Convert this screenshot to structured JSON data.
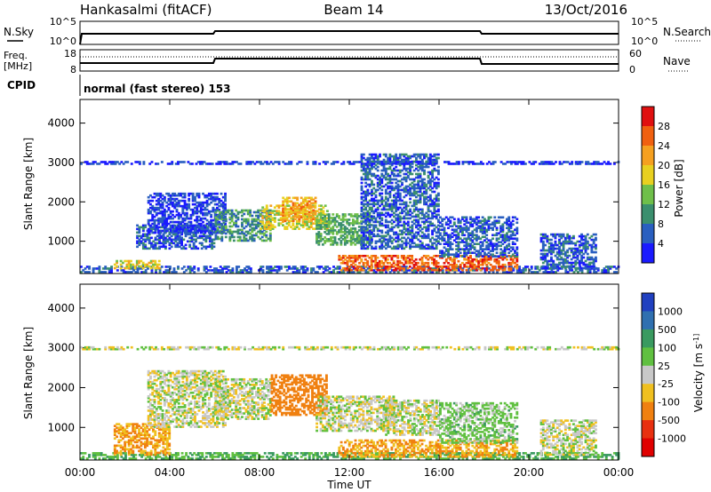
{
  "header": {
    "station": "Hankasalmi (fitACF)",
    "beam": "Beam 14",
    "date": "13/Oct/2016"
  },
  "noise_panel": {
    "left_label": "N.Sky",
    "right_label": "N.Search",
    "left_ticks": [
      "10^5",
      "10^0"
    ],
    "right_ticks": [
      "10^5",
      "10^0"
    ]
  },
  "freq_panel": {
    "left_label_1": "Freq.",
    "left_label_2": "[MHz]",
    "right_label": "Nave",
    "left_ticks": [
      "18",
      "8"
    ],
    "right_ticks": [
      "60",
      "0"
    ]
  },
  "cpid": {
    "label": "CPID",
    "text": "normal (fast stereo) 153"
  },
  "chart_data": [
    {
      "type": "heatmap",
      "title": "Power",
      "ylabel": "Slant Range [km]",
      "xlabel": "Time UT",
      "ylim": [
        180,
        4600
      ],
      "yticks": [
        "1000",
        "2000",
        "3000",
        "4000"
      ],
      "xticks": [
        "00:00",
        "04:00",
        "08:00",
        "12:00",
        "16:00",
        "20:00",
        "00:00"
      ],
      "colorbar": {
        "label": "Power [dB]",
        "ticks": [
          "4",
          "8",
          "12",
          "16",
          "20",
          "24",
          "28"
        ],
        "colors": [
          "#1a1aff",
          "#2a5fc0",
          "#3b8f6e",
          "#6fbf4a",
          "#e8d020",
          "#f5a020",
          "#f06010",
          "#e01010"
        ]
      },
      "echo_regions": [
        {
          "t_start": 0.0,
          "t_end": 24.0,
          "range_min": 200,
          "range_max": 350,
          "power": 8
        },
        {
          "t_start": 1.5,
          "t_end": 3.5,
          "range_min": 300,
          "range_max": 500,
          "power": 20
        },
        {
          "t_start": 2.5,
          "t_end": 6.0,
          "range_min": 800,
          "range_max": 1400,
          "power": 8
        },
        {
          "t_start": 3.0,
          "t_end": 6.5,
          "range_min": 1200,
          "range_max": 2200,
          "power": 6
        },
        {
          "t_start": 6.0,
          "t_end": 8.5,
          "range_min": 1000,
          "range_max": 1800,
          "power": 12
        },
        {
          "t_start": 8.0,
          "t_end": 11.0,
          "range_min": 1300,
          "range_max": 1900,
          "power": 20
        },
        {
          "t_start": 9.0,
          "t_end": 10.5,
          "range_min": 1500,
          "range_max": 2100,
          "power": 24
        },
        {
          "t_start": 10.5,
          "t_end": 13.0,
          "range_min": 900,
          "range_max": 1700,
          "power": 14
        },
        {
          "t_start": 11.5,
          "t_end": 19.5,
          "range_min": 250,
          "range_max": 650,
          "power": 28
        },
        {
          "t_start": 12.5,
          "t_end": 16.0,
          "range_min": 800,
          "range_max": 3200,
          "power": 8
        },
        {
          "t_start": 16.0,
          "t_end": 19.5,
          "range_min": 600,
          "range_max": 1600,
          "power": 8
        },
        {
          "t_start": 20.5,
          "t_end": 23.0,
          "range_min": 300,
          "range_max": 1200,
          "power": 8
        },
        {
          "t_start": 0.0,
          "t_end": 24.0,
          "range_min": 2950,
          "range_max": 3000,
          "power": 6
        }
      ]
    },
    {
      "type": "heatmap",
      "title": "Velocity",
      "ylabel": "Slant Range [km]",
      "xlabel": "Time UT",
      "ylim": [
        180,
        4600
      ],
      "yticks": [
        "1000",
        "2000",
        "3000",
        "4000"
      ],
      "xticks": [
        "00:00",
        "04:00",
        "08:00",
        "12:00",
        "16:00",
        "20:00",
        "00:00"
      ],
      "colorbar": {
        "label": "Velocity [m s^-1]",
        "ticks": [
          "1000",
          "500",
          "100",
          "25",
          "-25",
          "-100",
          "-500",
          "-1000"
        ],
        "colors": [
          "#2040c0",
          "#3070b0",
          "#3a9a60",
          "#60c040",
          "#c8c8c8",
          "#f0c020",
          "#f08010",
          "#e83010",
          "#e00000"
        ]
      },
      "echo_regions": [
        {
          "t_start": 0.0,
          "t_end": 24.0,
          "range_min": 200,
          "range_max": 350,
          "velocity": 100
        },
        {
          "t_start": 1.5,
          "t_end": 4.0,
          "range_min": 300,
          "range_max": 1100,
          "velocity": -100
        },
        {
          "t_start": 3.0,
          "t_end": 6.5,
          "range_min": 1000,
          "range_max": 2400,
          "velocity": 0
        },
        {
          "t_start": 6.0,
          "t_end": 8.5,
          "range_min": 1200,
          "range_max": 2200,
          "velocity": 0
        },
        {
          "t_start": 8.5,
          "t_end": 11.0,
          "range_min": 1300,
          "range_max": 2300,
          "velocity": -300
        },
        {
          "t_start": 10.5,
          "t_end": 14.0,
          "range_min": 900,
          "range_max": 1800,
          "velocity": 0
        },
        {
          "t_start": 11.5,
          "t_end": 19.5,
          "range_min": 250,
          "range_max": 700,
          "velocity": -100
        },
        {
          "t_start": 13.5,
          "t_end": 16.0,
          "range_min": 800,
          "range_max": 1700,
          "velocity": 0
        },
        {
          "t_start": 16.0,
          "t_end": 19.5,
          "range_min": 600,
          "range_max": 1600,
          "velocity": 50
        },
        {
          "t_start": 20.5,
          "t_end": 23.0,
          "range_min": 300,
          "range_max": 1200,
          "velocity": 0
        },
        {
          "t_start": 0.0,
          "t_end": 24.0,
          "range_min": 2950,
          "range_max": 3000,
          "velocity": 0
        }
      ]
    }
  ]
}
